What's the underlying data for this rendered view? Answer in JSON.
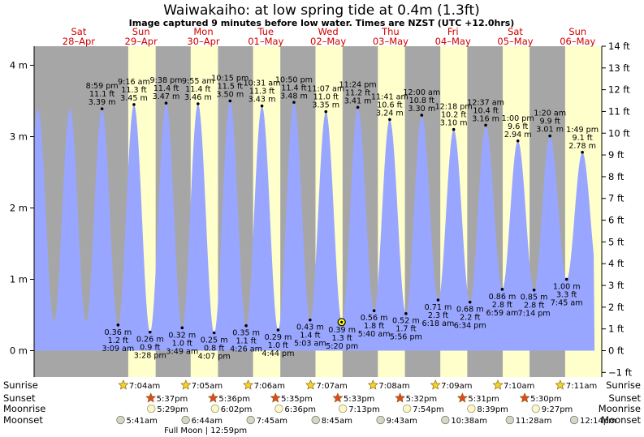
{
  "header": {
    "title": "Waiwakaiho: at low  spring tide at 0.4m (1.3ft)",
    "subtitle": "Image captured 9 minutes before low water. Times are NZST (UTC +12.0hrs)"
  },
  "colors": {
    "night": "#a6a6a6",
    "day": "#ffffcc",
    "water": "#99a6ff",
    "day_label": "#d00000",
    "sun_fill": "#f6d32a",
    "sunset_fill": "#e4481f",
    "moon_rise": "#fdf6c6",
    "moon_set": "#d6d6c6",
    "now_marker": "#ffff00"
  },
  "chart_data": {
    "type": "area",
    "title": "Waiwakaiho: at low  spring tide at 0.4m (1.3ft)",
    "subtitle": "Image captured 9 minutes before low water. Times are NZST (UTC +12.0hrs)",
    "y_left_ticks": [
      "0 m",
      "1 m",
      "2 m",
      "3 m",
      "4 m"
    ],
    "y_right_ticks": [
      "−1 ft",
      "0 ft",
      "1 ft",
      "2 ft",
      "3 ft",
      "4 ft",
      "5 ft",
      "6 ft",
      "7 ft",
      "8 ft",
      "9 ft",
      "10 ft",
      "11 ft",
      "12 ft",
      "13 ft",
      "14 ft"
    ],
    "ylim_m": [
      -0.3,
      4.3
    ],
    "days": [
      {
        "dow": "Sat",
        "date": "28–Apr"
      },
      {
        "dow": "Sun",
        "date": "29–Apr"
      },
      {
        "dow": "Mon",
        "date": "30–Apr"
      },
      {
        "dow": "Tue",
        "date": "01–May"
      },
      {
        "dow": "Wed",
        "date": "02–May"
      },
      {
        "dow": "Thu",
        "date": "03–May"
      },
      {
        "dow": "Fri",
        "date": "04–May"
      },
      {
        "dow": "Sat",
        "date": "05–May"
      },
      {
        "dow": "Sun",
        "date": "06–May"
      }
    ],
    "tides": [
      {
        "type": "high",
        "day": 0,
        "time": "8:59 pm",
        "ft": "11.1 ft",
        "m": 3.39,
        "m_label": "3.39 m"
      },
      {
        "type": "low",
        "day": 1,
        "time": "3:09 am",
        "ft": "1.2 ft",
        "m": 0.36,
        "m_label": "0.36 m"
      },
      {
        "type": "high",
        "day": 1,
        "time": "9:16 am",
        "ft": "11.3 ft",
        "m": 3.45,
        "m_label": "3.45 m"
      },
      {
        "type": "low",
        "day": 1,
        "time": "3:28 pm",
        "ft": "0.9 ft",
        "m": 0.26,
        "m_label": "0.26 m"
      },
      {
        "type": "high",
        "day": 1,
        "time": "9:38 pm",
        "ft": "11.4 ft",
        "m": 3.47,
        "m_label": "3.47 m"
      },
      {
        "type": "low",
        "day": 2,
        "time": "3:49 am",
        "ft": "1.0 ft",
        "m": 0.32,
        "m_label": "0.32 m"
      },
      {
        "type": "high",
        "day": 2,
        "time": "9:55 am",
        "ft": "11.4 ft",
        "m": 3.46,
        "m_label": "3.46 m"
      },
      {
        "type": "low",
        "day": 2,
        "time": "4:07 pm",
        "ft": "0.8 ft",
        "m": 0.25,
        "m_label": "0.25 m"
      },
      {
        "type": "high",
        "day": 2,
        "time": "10:15 pm",
        "ft": "11.5 ft",
        "m": 3.5,
        "m_label": "3.50 m"
      },
      {
        "type": "low",
        "day": 3,
        "time": "4:26 am",
        "ft": "1.1 ft",
        "m": 0.35,
        "m_label": "0.35 m"
      },
      {
        "type": "high",
        "day": 3,
        "time": "10:31 am",
        "ft": "11.3 ft",
        "m": 3.43,
        "m_label": "3.43 m"
      },
      {
        "type": "low",
        "day": 3,
        "time": "4:44 pm",
        "ft": "1.0 ft",
        "m": 0.29,
        "m_label": "0.29 m"
      },
      {
        "type": "high",
        "day": 3,
        "time": "10:50 pm",
        "ft": "11.4 ft",
        "m": 3.48,
        "m_label": "3.48 m"
      },
      {
        "type": "low",
        "day": 4,
        "time": "5:03 am",
        "ft": "1.4 ft",
        "m": 0.43,
        "m_label": "0.43 m"
      },
      {
        "type": "high",
        "day": 4,
        "time": "11:07 am",
        "ft": "11.0 ft",
        "m": 3.35,
        "m_label": "3.35 m"
      },
      {
        "type": "low",
        "day": 4,
        "time": "5:20 pm",
        "ft": "1.3 ft",
        "m": 0.39,
        "m_label": "0.39 m"
      },
      {
        "type": "high",
        "day": 4,
        "time": "11:24 pm",
        "ft": "11.2 ft",
        "m": 3.41,
        "m_label": "3.41 m"
      },
      {
        "type": "low",
        "day": 5,
        "time": "5:40 am",
        "ft": "1.8 ft",
        "m": 0.56,
        "m_label": "0.56 m"
      },
      {
        "type": "high",
        "day": 5,
        "time": "11:41 am",
        "ft": "10.6 ft",
        "m": 3.24,
        "m_label": "3.24 m"
      },
      {
        "type": "low",
        "day": 5,
        "time": "5:56 pm",
        "ft": "1.7 ft",
        "m": 0.52,
        "m_label": "0.52 m"
      },
      {
        "type": "high",
        "day": 6,
        "time": "12:00 am",
        "ft": "10.8 ft",
        "m": 3.3,
        "m_label": "3.30 m"
      },
      {
        "type": "low",
        "day": 6,
        "time": "6:18 am",
        "ft": "2.3 ft",
        "m": 0.71,
        "m_label": "0.71 m"
      },
      {
        "type": "high",
        "day": 6,
        "time": "12:18 pm",
        "ft": "10.2 ft",
        "m": 3.1,
        "m_label": "3.10 m"
      },
      {
        "type": "low",
        "day": 6,
        "time": "6:34 pm",
        "ft": "2.2 ft",
        "m": 0.68,
        "m_label": "0.68 m"
      },
      {
        "type": "high",
        "day": 7,
        "time": "12:37 am",
        "ft": "10.4 ft",
        "m": 3.16,
        "m_label": "3.16 m"
      },
      {
        "type": "low",
        "day": 7,
        "time": "6:59 am",
        "ft": "2.8 ft",
        "m": 0.86,
        "m_label": "0.86 m"
      },
      {
        "type": "high",
        "day": 7,
        "time": "1:00 pm",
        "ft": "9.6 ft",
        "m": 2.94,
        "m_label": "2.94 m"
      },
      {
        "type": "low",
        "day": 7,
        "time": "7:14 pm",
        "ft": "2.8 ft",
        "m": 0.85,
        "m_label": "0.85 m"
      },
      {
        "type": "high",
        "day": 8,
        "time": "1:20 am",
        "ft": "9.9 ft",
        "m": 3.01,
        "m_label": "3.01 m"
      },
      {
        "type": "low",
        "day": 8,
        "time": "7:45 am",
        "ft": "3.3 ft",
        "m": 1.0,
        "m_label": "1.00 m"
      },
      {
        "type": "high",
        "day": 8,
        "time": "1:49 pm",
        "ft": "9.1 ft",
        "m": 2.78,
        "m_label": "2.78 m"
      }
    ],
    "now": {
      "day": 4,
      "time": "5:11 pm",
      "m": 0.4
    },
    "series_end": {
      "day": 8,
      "time": "6:30 pm"
    },
    "sun": [
      {
        "day": 1,
        "rise": "7:04am",
        "set": "5:37pm"
      },
      {
        "day": 2,
        "rise": "7:05am",
        "set": "5:36pm"
      },
      {
        "day": 3,
        "rise": "7:06am",
        "set": "5:35pm"
      },
      {
        "day": 4,
        "rise": "7:07am",
        "set": "5:33pm"
      },
      {
        "day": 5,
        "rise": "7:08am",
        "set": "5:32pm"
      },
      {
        "day": 6,
        "rise": "7:09am",
        "set": "5:31pm"
      },
      {
        "day": 7,
        "rise": "7:10am",
        "set": "5:30pm"
      },
      {
        "day": 8,
        "rise": "7:11am",
        "set": null
      }
    ],
    "moonrise": [
      {
        "day": 1,
        "time": "5:29pm"
      },
      {
        "day": 2,
        "time": "6:02pm"
      },
      {
        "day": 3,
        "time": "6:36pm"
      },
      {
        "day": 4,
        "time": "7:13pm"
      },
      {
        "day": 5,
        "time": "7:54pm"
      },
      {
        "day": 6,
        "time": "8:39pm"
      },
      {
        "day": 7,
        "time": "9:27pm"
      }
    ],
    "moonset": [
      {
        "day": 1,
        "time": "5:41am"
      },
      {
        "day": 2,
        "time": "6:44am"
      },
      {
        "day": 3,
        "time": "7:45am"
      },
      {
        "day": 4,
        "time": "8:45am"
      },
      {
        "day": 5,
        "time": "9:43am"
      },
      {
        "day": 6,
        "time": "10:38am"
      },
      {
        "day": 7,
        "time": "11:28am"
      },
      {
        "day": 8,
        "time": "12:14pm"
      }
    ],
    "full_moon": {
      "day": 2,
      "label": "Full Moon",
      "time": "12:59pm"
    }
  },
  "rows": {
    "sunrise": "Sunrise",
    "sunset": "Sunset",
    "moonrise": "Moonrise",
    "moonset": "Moonset"
  }
}
